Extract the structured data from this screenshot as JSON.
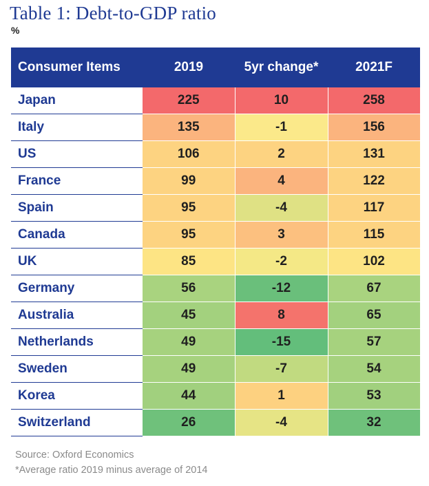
{
  "header": {
    "title": "Table 1: Debt-to-GDP ratio",
    "unit": "%"
  },
  "chart_data": {
    "type": "table",
    "title": "Table 1: Debt-to-GDP ratio",
    "unit": "%",
    "columns": [
      "Consumer Items",
      "2019",
      "5yr change*",
      "2021F"
    ],
    "rows": [
      {
        "name": "Japan",
        "values": [
          "225",
          "10",
          "258"
        ],
        "colors": [
          "#f3696b",
          "#f3696b",
          "#f3696b"
        ]
      },
      {
        "name": "Italy",
        "values": [
          "135",
          "-1",
          "156"
        ],
        "colors": [
          "#fbb47e",
          "#fbe98a",
          "#fbb47e"
        ]
      },
      {
        "name": "US",
        "values": [
          "106",
          "2",
          "131"
        ],
        "colors": [
          "#fdd381",
          "#fdd381",
          "#fdd381"
        ]
      },
      {
        "name": "France",
        "values": [
          "99",
          "4",
          "122"
        ],
        "colors": [
          "#fdd381",
          "#fbb47e",
          "#fdd381"
        ]
      },
      {
        "name": "Spain",
        "values": [
          "95",
          "-4",
          "117"
        ],
        "colors": [
          "#fdd381",
          "#dfe184",
          "#fdd381"
        ]
      },
      {
        "name": "Canada",
        "values": [
          "95",
          "3",
          "115"
        ],
        "colors": [
          "#fdd381",
          "#fcc07f",
          "#fdd381"
        ]
      },
      {
        "name": "UK",
        "values": [
          "85",
          "-2",
          "102"
        ],
        "colors": [
          "#fde484",
          "#f4e886",
          "#fde484"
        ]
      },
      {
        "name": "Germany",
        "values": [
          "56",
          "-12",
          "67"
        ],
        "colors": [
          "#a9d37f",
          "#6abf7b",
          "#a9d37f"
        ]
      },
      {
        "name": "Australia",
        "values": [
          "45",
          "8",
          "65"
        ],
        "colors": [
          "#a3d17e",
          "#f4736c",
          "#a3d17e"
        ]
      },
      {
        "name": "Netherlands",
        "values": [
          "49",
          "-15",
          "57"
        ],
        "colors": [
          "#a6d27e",
          "#63be7b",
          "#a6d27e"
        ]
      },
      {
        "name": "Sweden",
        "values": [
          "49",
          "-7",
          "54"
        ],
        "colors": [
          "#a6d27e",
          "#c1da80",
          "#a6d27e"
        ]
      },
      {
        "name": "Korea",
        "values": [
          "44",
          "1",
          "53"
        ],
        "colors": [
          "#a1d07e",
          "#fdd180",
          "#a1d07e"
        ]
      },
      {
        "name": "Switzerland",
        "values": [
          "26",
          "-4",
          "32"
        ],
        "colors": [
          "#6fc17b",
          "#e6e485",
          "#6fc17b"
        ]
      }
    ]
  },
  "footer": {
    "source": "Source: Oxford Economics",
    "note": "*Average ratio 2019 minus average of 2014"
  }
}
